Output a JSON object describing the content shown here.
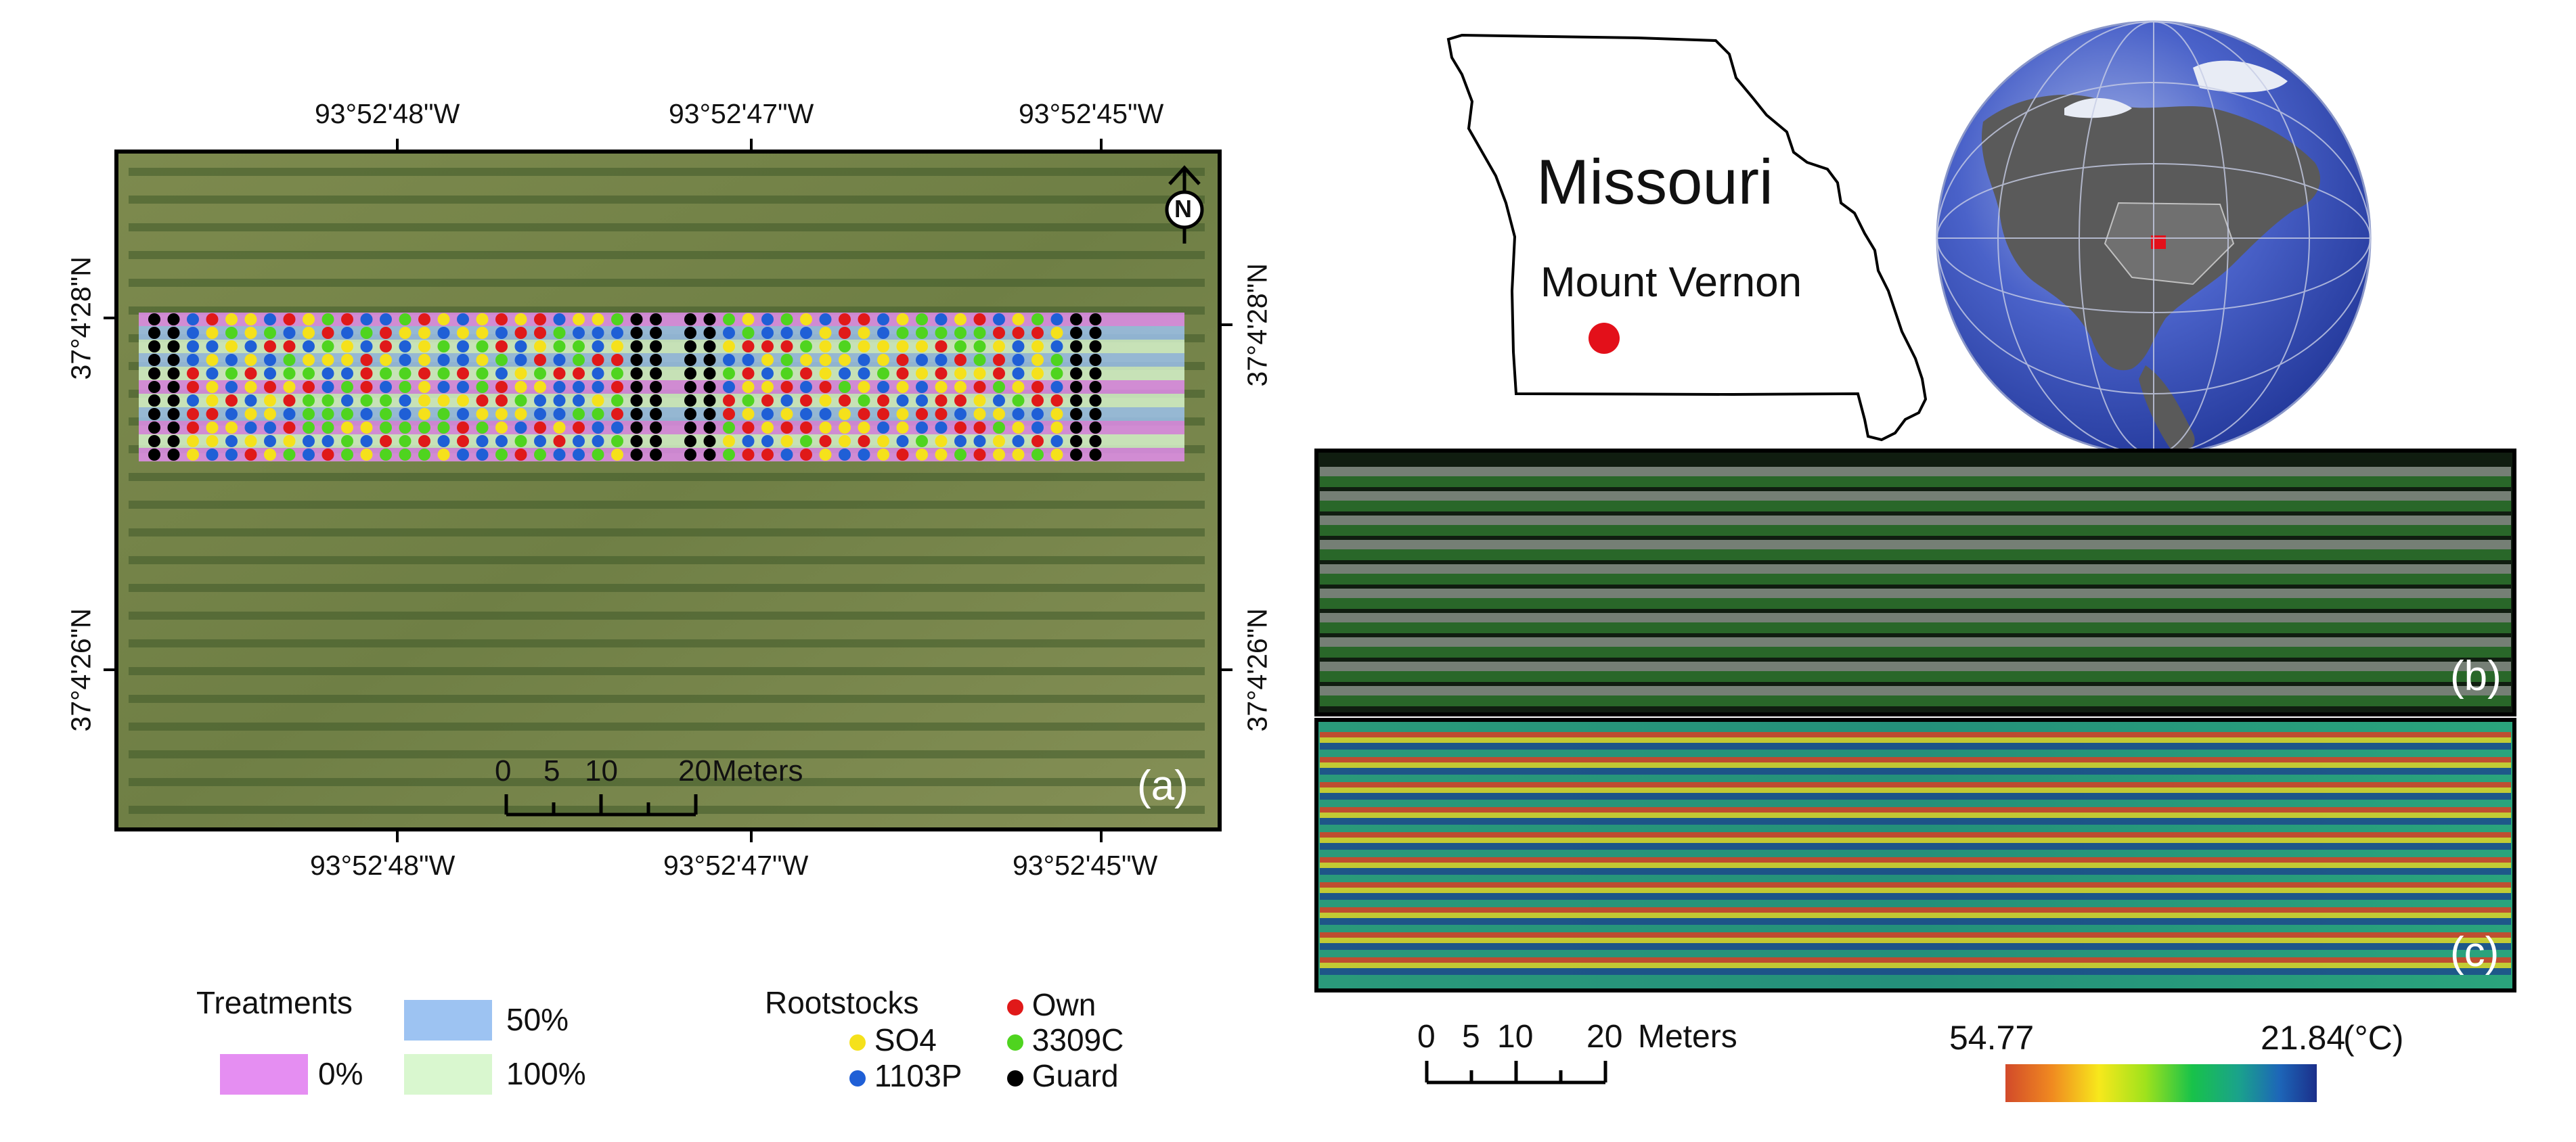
{
  "panel_a": {
    "label": "(a)",
    "top_lon": [
      "93°52'48\"W",
      "93°52'47\"W",
      "93°52'45\"W"
    ],
    "bottom_lon": [
      "93°52'48\"W",
      "93°52'47\"W",
      "93°52'45\"W"
    ],
    "left_lat": [
      "37°4'28\"N",
      "37°4'26\"N"
    ],
    "right_lat": [
      "37°4'28\"N",
      "37°4'26\"N"
    ],
    "north_letter": "N",
    "scale": {
      "ticks": [
        "0",
        "5",
        "10",
        "20"
      ],
      "unit": "Meters"
    }
  },
  "inset": {
    "state": "Missouri",
    "site": "Mount Vernon",
    "site_color": "#e3101a"
  },
  "panel_b": {
    "label": "(b)"
  },
  "panel_c": {
    "label": "(c)",
    "scale": {
      "ticks": [
        "0",
        "5",
        "10",
        "20"
      ],
      "unit": "Meters"
    },
    "colorbar": {
      "max": "54.77",
      "min": "21.84",
      "unit": "(°C)"
    }
  },
  "legend": {
    "treatments_title": "Treatments",
    "treatments": [
      {
        "label": "0%",
        "color": "#e58ef2"
      },
      {
        "label": "50%",
        "color": "#9dc3f2"
      },
      {
        "label": "100%",
        "color": "#d9f7cf"
      }
    ],
    "rootstocks_title": "Rootstocks",
    "rootstocks": [
      {
        "label": "SO4",
        "color": "#f5e11b"
      },
      {
        "label": "1103P",
        "color": "#1f5fd6"
      },
      {
        "label": "Own",
        "color": "#e01919"
      },
      {
        "label": "3309C",
        "color": "#4fd41f"
      },
      {
        "label": "Guard",
        "color": "#000000"
      }
    ]
  }
}
